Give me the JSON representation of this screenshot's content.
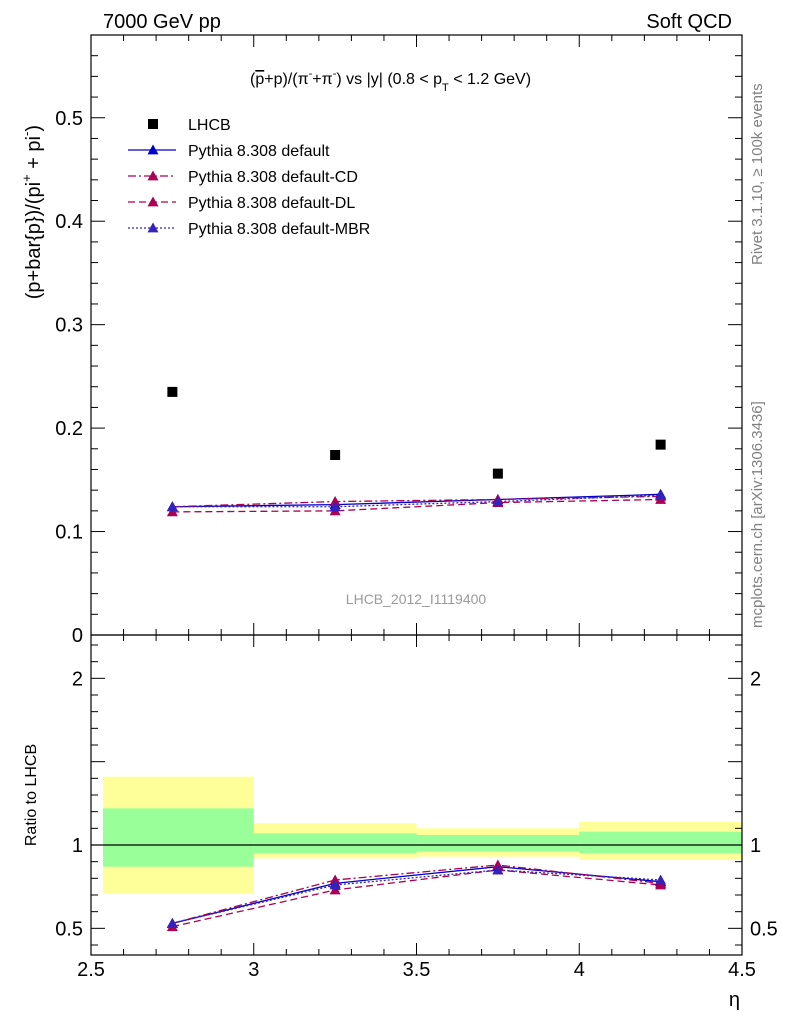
{
  "header": {
    "left": "7000 GeV pp",
    "right": "Soft QCD"
  },
  "side_labels": {
    "rivet": "Rivet 3.1.10, ≥ 100k events",
    "mcplots": "mcplots.cern.ch [arXiv:1306.3436]"
  },
  "analysis_id": "LHCB_2012_I1119400",
  "chart_data": [
    {
      "type": "scatter",
      "panel": "main",
      "title": "(p̄+p)/(π⁻+π⁺) vs |y| (0.8 < p_T < 1.2 GeV)",
      "ylabel": "(p+bar{p})/(pi⁺ + pi⁻)",
      "xlabel": "η",
      "xlim": [
        2.5,
        4.5
      ],
      "ylim": [
        0,
        0.58
      ],
      "yticks": [
        0,
        0.1,
        0.2,
        0.3,
        0.4,
        0.5
      ],
      "yticklabels": [
        "0",
        "0.1",
        "0.2",
        "0.3",
        "0.4",
        "0.5"
      ],
      "legend_position": "top-left",
      "x": [
        2.75,
        3.25,
        3.75,
        4.25
      ],
      "series": [
        {
          "name": "LHCB",
          "color": "#000000",
          "style": "data",
          "values": [
            0.235,
            0.174,
            0.156,
            0.184
          ]
        },
        {
          "name": "Pythia 8.308 default",
          "color": "#0000cc",
          "style": "solid",
          "values": [
            0.124,
            0.126,
            0.131,
            0.136
          ]
        },
        {
          "name": "Pythia 8.308 default-CD",
          "color": "#aa0055",
          "style": "dashdot",
          "values": [
            0.124,
            0.129,
            0.131,
            0.134
          ]
        },
        {
          "name": "Pythia 8.308 default-DL",
          "color": "#aa0055",
          "style": "dashed",
          "values": [
            0.119,
            0.12,
            0.128,
            0.131
          ]
        },
        {
          "name": "Pythia 8.308 default-MBR",
          "color": "#3322bb",
          "style": "dotted",
          "values": [
            0.124,
            0.124,
            0.129,
            0.135
          ]
        }
      ]
    },
    {
      "type": "line",
      "panel": "ratio",
      "ylabel": "Ratio to LHCB",
      "xlabel": "η",
      "xlim": [
        2.5,
        4.5
      ],
      "ylim": [
        0.34,
        2.26
      ],
      "xticks": [
        2.5,
        3,
        3.5,
        4,
        4.5
      ],
      "xticklabels": [
        "2.5",
        "3",
        "3.5",
        "4",
        "4.5"
      ],
      "yticks": [
        0.5,
        1,
        2
      ],
      "yticklabels": [
        "0.5",
        "1",
        "2"
      ],
      "bands": [
        {
          "x0": 2.5,
          "x1": 3.0,
          "inner": [
            0.87,
            1.22
          ],
          "outer": [
            0.71,
            1.41
          ]
        },
        {
          "x0": 3.0,
          "x1": 3.5,
          "inner": [
            0.95,
            1.07
          ],
          "outer": [
            0.92,
            1.13
          ]
        },
        {
          "x0": 3.5,
          "x1": 4.0,
          "inner": [
            0.96,
            1.06
          ],
          "outer": [
            0.93,
            1.1
          ]
        },
        {
          "x0": 4.0,
          "x1": 4.5,
          "inner": [
            0.95,
            1.08
          ],
          "outer": [
            0.91,
            1.14
          ]
        }
      ],
      "band_colors": {
        "inner": "#99ff99",
        "outer": "#ffff99"
      },
      "x": [
        2.75,
        3.25,
        3.75,
        4.25
      ],
      "series": [
        {
          "name": "Pythia 8.308 default",
          "color": "#0000cc",
          "style": "solid",
          "values": [
            0.53,
            0.77,
            0.87,
            0.78
          ]
        },
        {
          "name": "Pythia 8.308 default-CD",
          "color": "#aa0055",
          "style": "dashdot",
          "values": [
            0.53,
            0.79,
            0.88,
            0.77
          ]
        },
        {
          "name": "Pythia 8.308 default-DL",
          "color": "#aa0055",
          "style": "dashed",
          "values": [
            0.51,
            0.73,
            0.85,
            0.76
          ]
        },
        {
          "name": "Pythia 8.308 default-MBR",
          "color": "#3322bb",
          "style": "dotted",
          "values": [
            0.53,
            0.76,
            0.85,
            0.79
          ]
        }
      ]
    }
  ]
}
